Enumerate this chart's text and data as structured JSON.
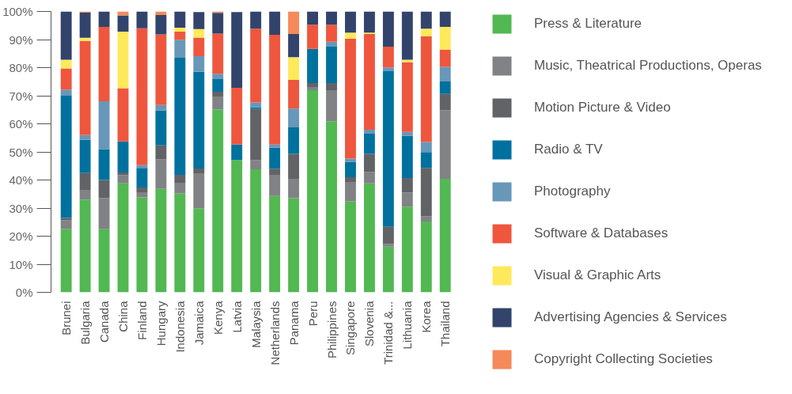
{
  "chart_data": {
    "type": "bar",
    "stacked": true,
    "categories": [
      "Brunei",
      "Bulgaria",
      "Canada",
      "China",
      "Finland",
      "Hungary",
      "Indonesia",
      "Jamaica",
      "Kenya",
      "Latvia",
      "Malaysia",
      "Netherlands",
      "Panama",
      "Peru",
      "Philippines",
      "Singapore",
      "Slovenia",
      "Trinidad &...",
      "Lithuania",
      "Korea",
      "Thailand"
    ],
    "series": [
      {
        "name": "Press & Literature",
        "color": "#52b852",
        "values": [
          22.6,
          33,
          22.5,
          38.8,
          33.8,
          36.8,
          35.2,
          29.9,
          65.1,
          47.1,
          43.8,
          34.3,
          33.5,
          72.0,
          60.9,
          32.4,
          38.8,
          16.3,
          30.5,
          25.2,
          40.4
        ]
      },
      {
        "name": "Music, Theatrical Productions, Operas",
        "color": "#808285",
        "values": [
          3,
          3.3,
          11,
          2.9,
          1.8,
          10.5,
          3.6,
          12.5,
          4.6,
          0,
          3.3,
          7.3,
          6.9,
          1.1,
          11.1,
          6.9,
          4.1,
          0.9,
          5.0,
          1.9,
          24.4
        ]
      },
      {
        "name": "Motion Picture & Video",
        "color": "#626366",
        "values": [
          0.9,
          6.2,
          6.5,
          1,
          1.7,
          5,
          3,
          1.7,
          1.7,
          0,
          18.2,
          2.4,
          8.9,
          1.4,
          2.5,
          1.7,
          6.4,
          6.1,
          5.2,
          17.2,
          5.8
        ]
      },
      {
        "name": "Radio & TV",
        "color": "#00719e",
        "values": [
          43.5,
          11.8,
          11,
          11,
          7,
          12.5,
          41.7,
          34.4,
          4.5,
          5.6,
          0.6,
          7.5,
          9.4,
          12.2,
          13.0,
          5.5,
          7.2,
          55.4,
          15.0,
          5.6,
          4.5
        ]
      },
      {
        "name": "Photography",
        "color": "#6797b9",
        "values": [
          2.2,
          1.7,
          17,
          0,
          1,
          1.9,
          6.4,
          5.6,
          1.9,
          0,
          1.7,
          1.1,
          6.7,
          0,
          1.7,
          1.1,
          1.4,
          1.4,
          1.4,
          3.6,
          5.2
        ]
      },
      {
        "name": "Software & Databases",
        "color": "#ef563e",
        "values": [
          7.5,
          33.5,
          26.5,
          19,
          48.7,
          25.1,
          2.9,
          6.6,
          14.3,
          20.1,
          26.3,
          39.1,
          10.2,
          8.6,
          6.1,
          42.7,
          34.1,
          7.4,
          24.9,
          37.6,
          6.1
        ]
      },
      {
        "name": "Visual & Graphic Arts",
        "color": "#fee95a",
        "values": [
          3.1,
          1.1,
          0,
          20.1,
          0,
          0,
          1.4,
          3,
          0,
          0,
          0,
          0,
          8.1,
          0,
          0,
          2.2,
          0.5,
          0,
          0.8,
          2.8,
          8.1
        ]
      },
      {
        "name": "Advertising Agencies & Services",
        "color": "#32446c",
        "values": [
          17.2,
          9,
          5.5,
          5.8,
          6,
          6.9,
          5.8,
          6.1,
          7.4,
          27,
          6.1,
          8.3,
          8.3,
          4.7,
          4.7,
          7.5,
          7.5,
          12.5,
          17.2,
          6.1,
          5.5
        ]
      },
      {
        "name": "Copyright Collecting Societies",
        "color": "#f5895a",
        "values": [
          0,
          0.4,
          0,
          1.4,
          0,
          1.3,
          0,
          0,
          0.5,
          0,
          0,
          0,
          8.0,
          0,
          0,
          0,
          0,
          0,
          0,
          0,
          0
        ]
      }
    ],
    "ylim": [
      0,
      100
    ],
    "yticks": [
      {
        "value": 0,
        "label": "0%"
      },
      {
        "value": 10,
        "label": "10%"
      },
      {
        "value": 20,
        "label": "20%"
      },
      {
        "value": 30,
        "label": "30%"
      },
      {
        "value": 40,
        "label": "40%"
      },
      {
        "value": 50,
        "label": "50%"
      },
      {
        "value": 60,
        "label": "60%"
      },
      {
        "value": 70,
        "label": "70%"
      },
      {
        "value": 80,
        "label": "80%"
      },
      {
        "value": 90,
        "label": "90%"
      },
      {
        "value": 100,
        "label": "100%"
      }
    ],
    "grid": false,
    "legend": "right"
  }
}
